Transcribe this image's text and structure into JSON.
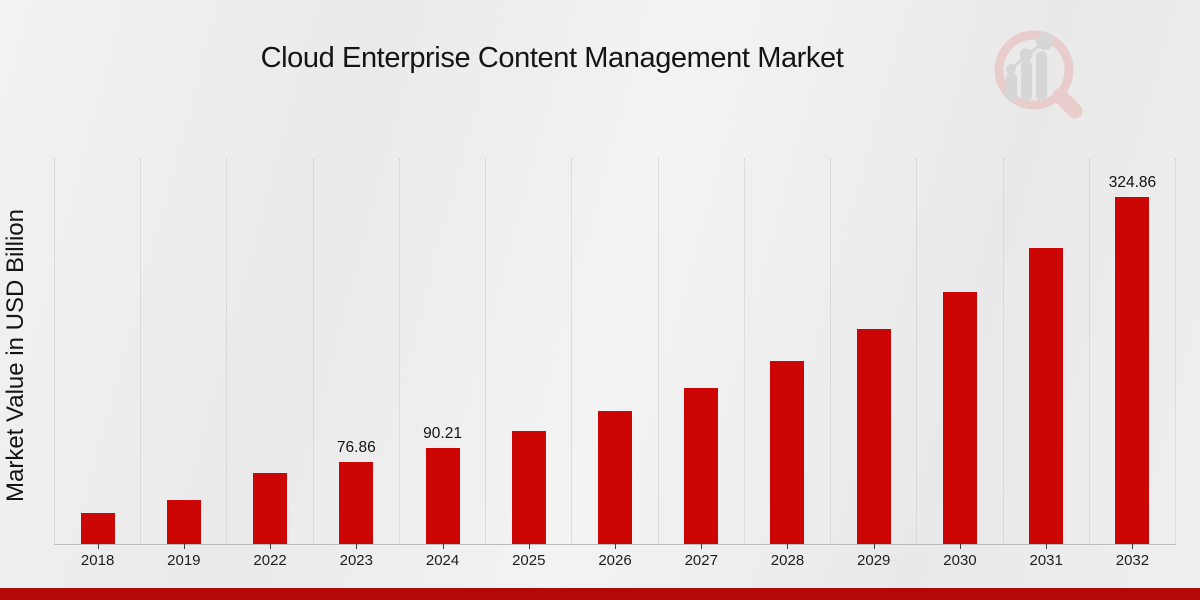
{
  "header": {
    "title": "Cloud Enterprise Content Management Market"
  },
  "watermark": {
    "icon": "magnifier-bar-chart-logo",
    "ring_color": "#e9c8c8",
    "glyph_color": "#d3d3d3"
  },
  "chart_data": {
    "type": "bar",
    "title": "Cloud Enterprise Content Management Market",
    "xlabel": "",
    "ylabel": "Market Value in USD Billion",
    "categories": [
      "2018",
      "2019",
      "2022",
      "2023",
      "2024",
      "2025",
      "2026",
      "2027",
      "2028",
      "2029",
      "2030",
      "2031",
      "2032"
    ],
    "values": [
      28.9,
      41.15,
      66.02,
      76.86,
      90.21,
      105.88,
      124.27,
      145.86,
      171.2,
      200.93,
      235.83,
      276.77,
      324.86
    ],
    "data_labels": [
      null,
      null,
      null,
      "76.86",
      "90.21",
      null,
      null,
      null,
      null,
      null,
      null,
      null,
      "324.86"
    ],
    "ylim": [
      0,
      360
    ],
    "bar_color": "#cc0605",
    "grid": "vertical-dotted",
    "legend": "none"
  },
  "footer": {
    "accent_bar_color": "#b30808"
  }
}
